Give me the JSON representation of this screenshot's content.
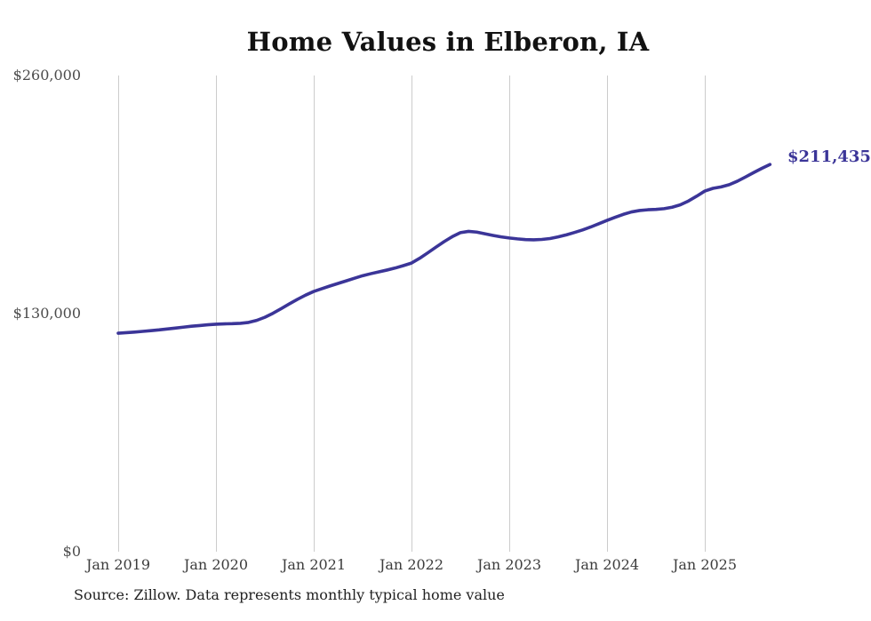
{
  "chart_data": {
    "type": "line",
    "title": "Home Values in Elberon, IA",
    "xlabel": "",
    "ylabel": "",
    "ylim": [
      0,
      260000
    ],
    "grid": "vertical-only",
    "legend": "none",
    "line_color": "#3B3598",
    "grid_color": "#CCCCCC",
    "end_label": "$211,435",
    "latest_value": 211435,
    "y_ticks": [
      {
        "value": 0,
        "label": "$0"
      },
      {
        "value": 130000,
        "label": "$130,000"
      },
      {
        "value": 260000,
        "label": "$260,000"
      }
    ],
    "x_ticks": [
      "Jan 2019",
      "Jan 2020",
      "Jan 2021",
      "Jan 2022",
      "Jan 2023",
      "Jan 2024",
      "Jan 2025"
    ],
    "x": [
      "2019-01",
      "2019-02",
      "2019-03",
      "2019-04",
      "2019-05",
      "2019-06",
      "2019-07",
      "2019-08",
      "2019-09",
      "2019-10",
      "2019-11",
      "2019-12",
      "2020-01",
      "2020-02",
      "2020-03",
      "2020-04",
      "2020-05",
      "2020-06",
      "2020-07",
      "2020-08",
      "2020-09",
      "2020-10",
      "2020-11",
      "2020-12",
      "2021-01",
      "2021-02",
      "2021-03",
      "2021-04",
      "2021-05",
      "2021-06",
      "2021-07",
      "2021-08",
      "2021-09",
      "2021-10",
      "2021-11",
      "2021-12",
      "2022-01",
      "2022-02",
      "2022-03",
      "2022-04",
      "2022-05",
      "2022-06",
      "2022-07",
      "2022-08",
      "2022-09",
      "2022-10",
      "2022-11",
      "2022-12",
      "2023-01",
      "2023-02",
      "2023-03",
      "2023-04",
      "2023-05",
      "2023-06",
      "2023-07",
      "2023-08",
      "2023-09",
      "2023-10",
      "2023-11",
      "2023-12",
      "2024-01",
      "2024-02",
      "2024-03",
      "2024-04",
      "2024-05",
      "2024-06",
      "2024-07",
      "2024-08",
      "2024-09",
      "2024-10",
      "2024-11",
      "2024-12",
      "2025-01",
      "2025-02",
      "2025-03",
      "2025-04",
      "2025-05",
      "2025-06",
      "2025-07",
      "2025-08",
      "2025-09"
    ],
    "series": [
      {
        "name": "Typical home value",
        "values": [
          119300,
          119600,
          119900,
          120300,
          120700,
          121100,
          121600,
          122100,
          122600,
          123100,
          123500,
          123900,
          124200,
          124400,
          124500,
          124700,
          125200,
          126300,
          128000,
          130200,
          132700,
          135300,
          137800,
          140100,
          142100,
          143600,
          145100,
          146500,
          147900,
          149300,
          150700,
          151800,
          152800,
          153800,
          154900,
          156200,
          157600,
          160200,
          163200,
          166300,
          169300,
          172000,
          174200,
          174900,
          174500,
          173600,
          172700,
          171900,
          171300,
          170800,
          170400,
          170300,
          170500,
          171000,
          171900,
          173000,
          174300,
          175700,
          177300,
          179100,
          180900,
          182600,
          184200,
          185500,
          186300,
          186700,
          186900,
          187300,
          188100,
          189400,
          191500,
          194100,
          196900,
          198400,
          199200,
          200400,
          202300,
          204600,
          207000,
          209300,
          211435
        ]
      }
    ]
  },
  "source": {
    "text": "Source: Zillow. Data represents monthly typical home value"
  }
}
